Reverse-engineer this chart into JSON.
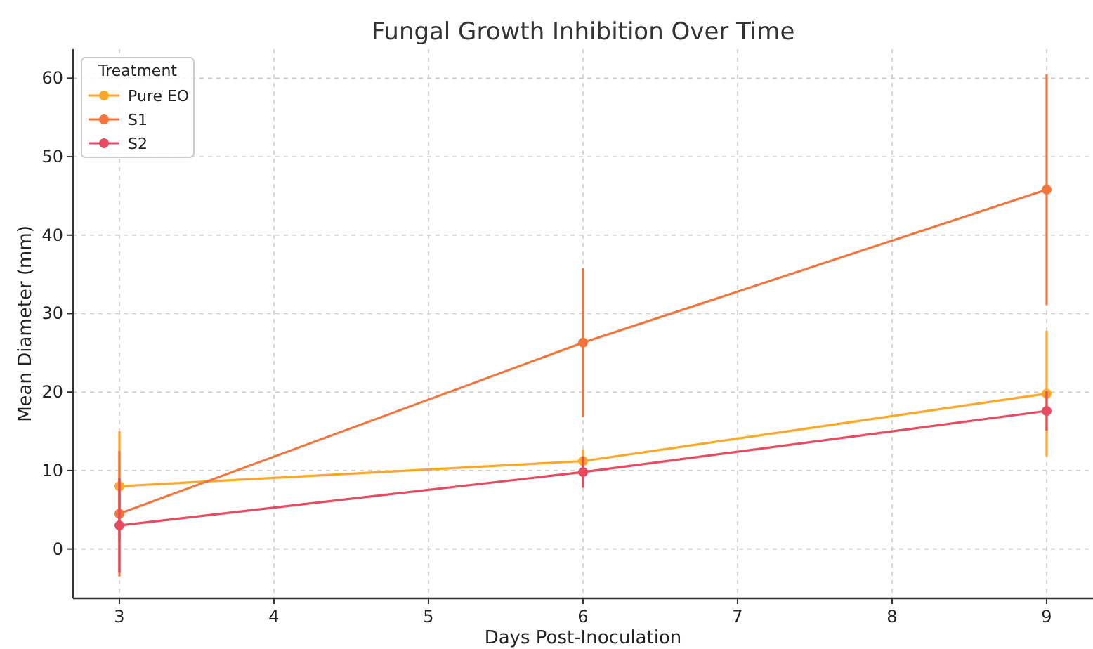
{
  "chart_data": {
    "type": "line",
    "title": "Fungal Growth Inhibition Over Time",
    "xlabel": "Days Post-Inoculation",
    "ylabel": "Mean Diameter (mm)",
    "legend_title": "Treatment",
    "x": [
      3,
      6,
      9
    ],
    "series": [
      {
        "name": "Pure EO",
        "color": "#ffa726",
        "values": [
          8,
          11.2,
          19.8
        ],
        "errors": [
          7,
          1.5,
          8
        ]
      },
      {
        "name": "S1",
        "color": "#f4743b",
        "values": [
          4.5,
          26.3,
          45.8
        ],
        "errors": [
          8,
          9.5,
          14.7
        ]
      },
      {
        "name": "S2",
        "color": "#e84a5f",
        "values": [
          3,
          9.8,
          17.6
        ],
        "errors": [
          6,
          2,
          2.5
        ]
      }
    ],
    "xlim": [
      2.7,
      9.3
    ],
    "xticks": [
      3,
      4,
      5,
      6,
      7,
      8,
      9
    ],
    "ylim": [
      -6.3,
      63.7
    ],
    "yticks": [
      0,
      10,
      20,
      30,
      40,
      50,
      60
    ],
    "grid": true,
    "legend": "top left",
    "marker": "circle",
    "line_style": "solid"
  }
}
